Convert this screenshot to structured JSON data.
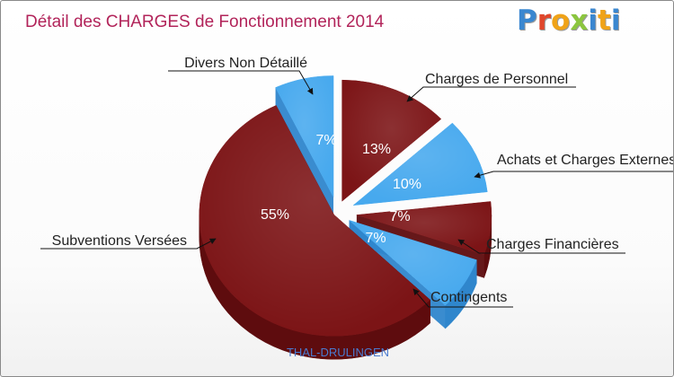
{
  "header": {
    "title": "Détail des CHARGES de Fonctionnement 2014",
    "logo_text": "Proxiti"
  },
  "footer": {
    "commune": "THAL-DRULINGEN"
  },
  "colors": {
    "title": "#b2245a",
    "maroon_top": "#7c1416",
    "maroon_side": "#5e0c0e",
    "blue_top": "#47a9ee",
    "blue_side": "#2f86cc",
    "footer": "#4a7bd0",
    "logo": [
      "#3a87d0",
      "#e0462b",
      "#f0a318",
      "#8cc63f",
      "#3a87d0",
      "#f0a318"
    ]
  },
  "chart_data": {
    "type": "pie",
    "style": "3d-exploded",
    "title": "Détail des CHARGES de Fonctionnement 2014",
    "slices": [
      {
        "label": "Charges de Personnel",
        "value": 13,
        "display": "13%",
        "color": "maroon"
      },
      {
        "label": "Achats et Charges Externes",
        "value": 10,
        "display": "10%",
        "color": "blue"
      },
      {
        "label": "Charges Financières",
        "value": 7,
        "display": "7%",
        "color": "maroon"
      },
      {
        "label": "Contingents",
        "value": 7,
        "display": "7%",
        "color": "blue"
      },
      {
        "label": "Subventions Versées",
        "value": 55,
        "display": "55%",
        "color": "maroon"
      },
      {
        "label": "Divers Non Détaillé",
        "value": 7,
        "display": "7%",
        "color": "blue"
      }
    ]
  }
}
